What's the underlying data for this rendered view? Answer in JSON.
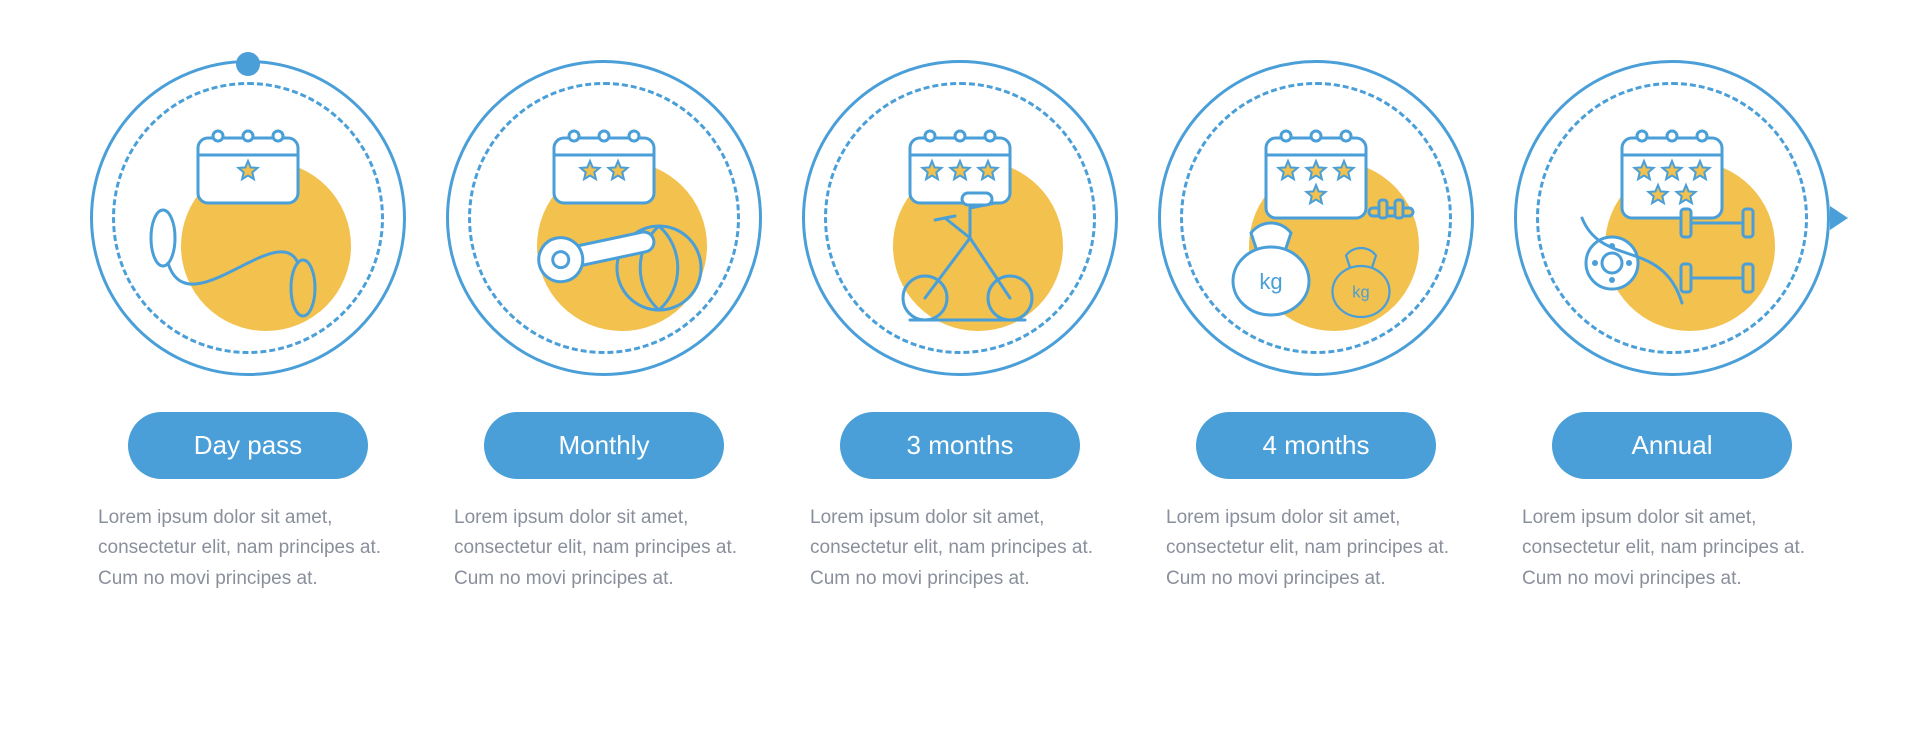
{
  "type": "infographic",
  "layout": "horizontal-5-step",
  "colors": {
    "blue": "#4a9fd8",
    "yellow": "#f2c14e",
    "grey": "#8a8f9c",
    "white": "#ffffff",
    "outline": "#4a9fd8"
  },
  "circle": {
    "outer_diameter": 316,
    "inner_dash_inset": 22,
    "accent_diameter": 170,
    "stroke_width": 3
  },
  "pill": {
    "font_size": 26,
    "radius": 999
  },
  "desc": {
    "font_size": 19,
    "line_height": 1.6
  },
  "items": [
    {
      "label": "Day pass",
      "stars": 1,
      "icon": "jump-rope",
      "desc": "Lorem ipsum dolor sit amet, consectetur elit, nam principes at. Cum no movi principes at."
    },
    {
      "label": "Monthly",
      "stars": 2,
      "icon": "mat-ball",
      "desc": "Lorem ipsum dolor sit amet, consectetur elit, nam principes at. Cum no movi principes at."
    },
    {
      "label": "3 months",
      "stars": 3,
      "icon": "bike",
      "desc": "Lorem ipsum dolor sit amet, consectetur elit, nam principes at. Cum no movi principes at."
    },
    {
      "label": "4 months",
      "stars": 4,
      "icon": "kettlebells",
      "desc": "Lorem ipsum dolor sit amet, consectetur elit, nam principes at. Cum no movi principes at."
    },
    {
      "label": "Annual",
      "stars": 5,
      "icon": "barbells",
      "desc": "Lorem ipsum dolor sit amet, consectetur elit, nam principes at. Cum no movi principes at."
    }
  ]
}
